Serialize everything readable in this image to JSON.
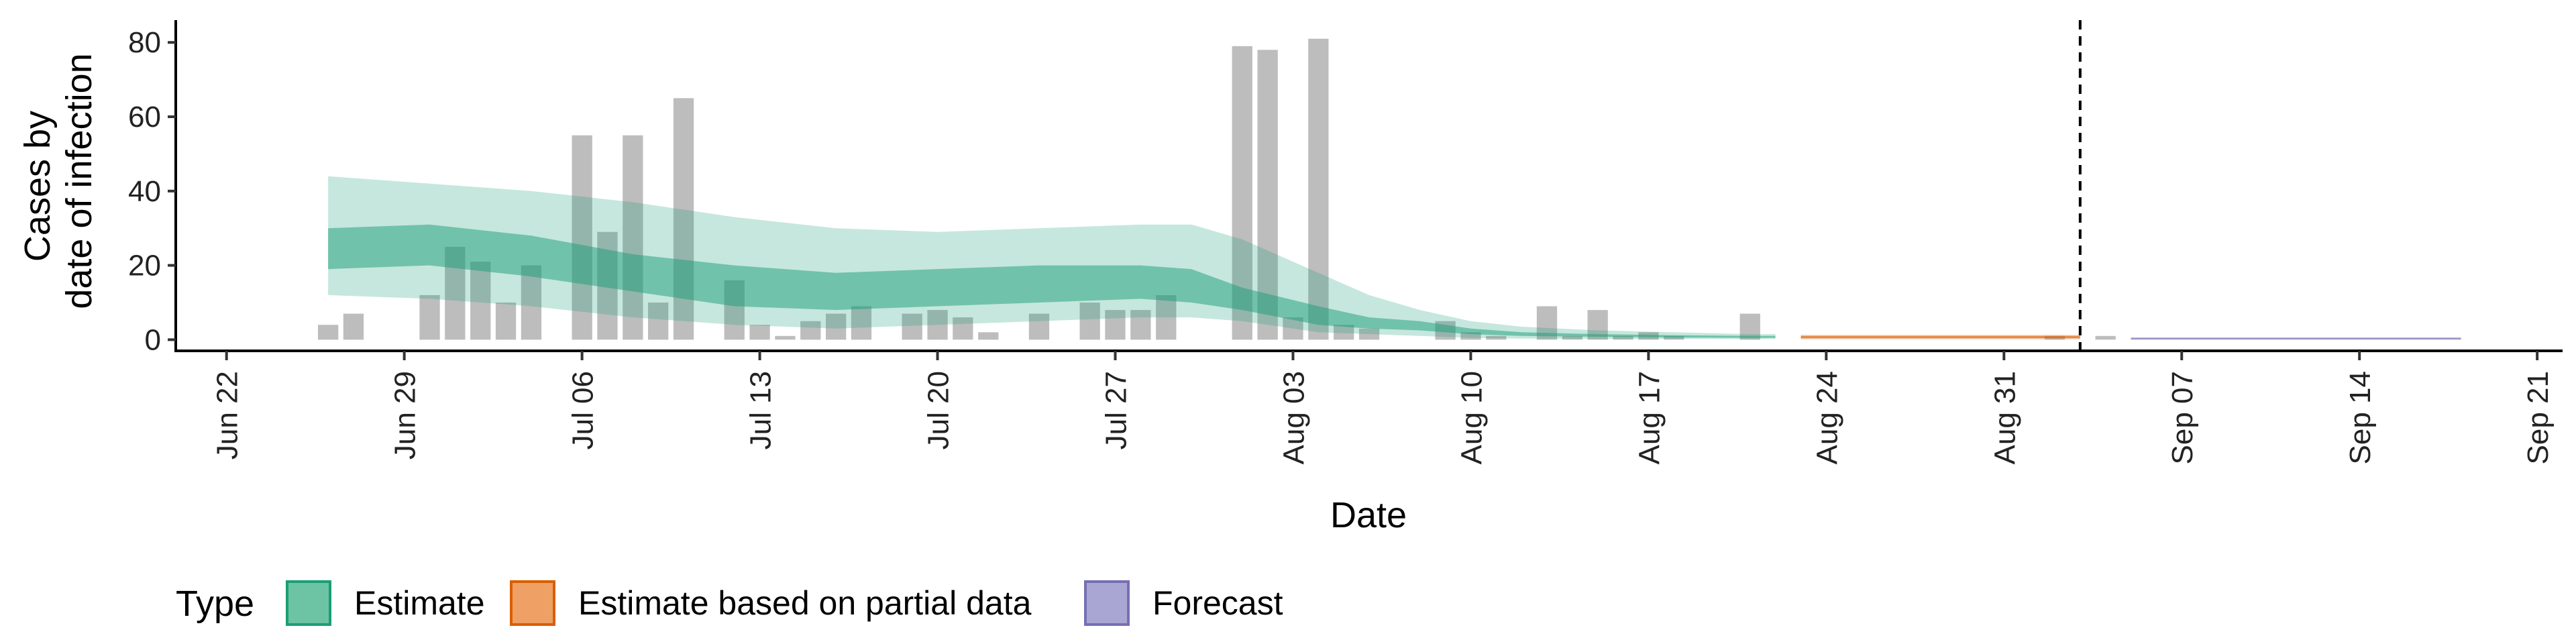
{
  "chart_data": {
    "type": "bar",
    "ylabel_line1": "Cases by",
    "ylabel_line2": "date of infection",
    "xlabel": "Date",
    "ylim": [
      -3,
      86
    ],
    "yticks": [
      0,
      20,
      40,
      60,
      80
    ],
    "x_range": [
      "2020-06-20",
      "2020-09-22"
    ],
    "x_tick_labels": [
      "Jun 22",
      "Jun 29",
      "Jul 06",
      "Jul 13",
      "Jul 20",
      "Jul 27",
      "Aug 03",
      "Aug 10",
      "Aug 17",
      "Aug 24",
      "Aug 31",
      "Sep 07",
      "Sep 14",
      "Sep 21"
    ],
    "x_tick_dates": [
      "2020-06-22",
      "2020-06-29",
      "2020-07-06",
      "2020-07-13",
      "2020-07-20",
      "2020-07-27",
      "2020-08-03",
      "2020-08-10",
      "2020-08-17",
      "2020-08-24",
      "2020-08-31",
      "2020-09-07",
      "2020-09-14",
      "2020-09-21"
    ],
    "vline_date": "2020-09-03",
    "grid": false,
    "bars": {
      "color": "#bdbdbd",
      "start_date": "2020-06-26",
      "values": [
        4,
        7,
        0,
        0,
        12,
        25,
        21,
        10,
        20,
        0,
        55,
        29,
        55,
        10,
        65,
        0,
        16,
        4,
        1,
        5,
        7,
        9,
        0,
        7,
        8,
        6,
        2,
        0,
        7,
        0,
        10,
        8,
        8,
        12,
        0,
        0,
        79,
        78,
        6,
        81,
        4,
        3,
        0,
        0,
        5,
        2,
        1,
        0,
        9,
        1,
        8,
        1,
        2,
        1,
        0,
        0,
        7,
        0,
        0,
        0,
        0,
        0,
        0,
        0,
        0,
        0,
        0,
        0,
        1,
        0,
        1
      ]
    },
    "estimate": {
      "color": "#1b9e77",
      "dates": [
        "2020-06-26",
        "2020-06-30",
        "2020-07-04",
        "2020-07-08",
        "2020-07-12",
        "2020-07-16",
        "2020-07-20",
        "2020-07-24",
        "2020-07-28",
        "2020-07-30",
        "2020-08-01",
        "2020-08-04",
        "2020-08-06",
        "2020-08-08",
        "2020-08-10",
        "2020-08-12",
        "2020-08-15",
        "2020-08-18",
        "2020-08-21",
        "2020-08-22"
      ],
      "median_upper": [
        30,
        31,
        28,
        23,
        20,
        18,
        19,
        20,
        20,
        19,
        14,
        9,
        6,
        5,
        3,
        2,
        1.5,
        1.2,
        1,
        1
      ],
      "median_lower": [
        19,
        20,
        17,
        13,
        9,
        8,
        9,
        10,
        11,
        10,
        8,
        4,
        3,
        2.5,
        1.5,
        1,
        0.8,
        0.6,
        0.5,
        0.5
      ],
      "ci_upper": [
        44,
        42,
        40,
        37,
        33,
        30,
        29,
        30,
        31,
        31,
        27,
        18,
        12,
        8,
        5,
        3.5,
        2.5,
        2,
        1.5,
        1.5
      ],
      "ci_lower": [
        12,
        11,
        9,
        6,
        4,
        3,
        4,
        5,
        6,
        6,
        5,
        2,
        1.5,
        1,
        0.5,
        0.3,
        0.2,
        0.2,
        0.2,
        0.2
      ]
    },
    "partial": {
      "color": "#d95f02",
      "start": "2020-08-23",
      "end": "2020-09-03",
      "lower": 0.1,
      "upper": 1.3
    },
    "forecast": {
      "color": "#7570b3",
      "start": "2020-09-05",
      "end": "2020-09-18",
      "lower": 0.1,
      "upper": 0.5
    }
  },
  "legend": {
    "title": "Type",
    "items": [
      {
        "label": "Estimate",
        "fill": "#6cc4a4",
        "stroke": "#1b9e77"
      },
      {
        "label": "Estimate based on partial data",
        "fill": "#eea065",
        "stroke": "#d95f02"
      },
      {
        "label": "Forecast",
        "fill": "#aaa6d4",
        "stroke": "#7570b3"
      }
    ]
  }
}
